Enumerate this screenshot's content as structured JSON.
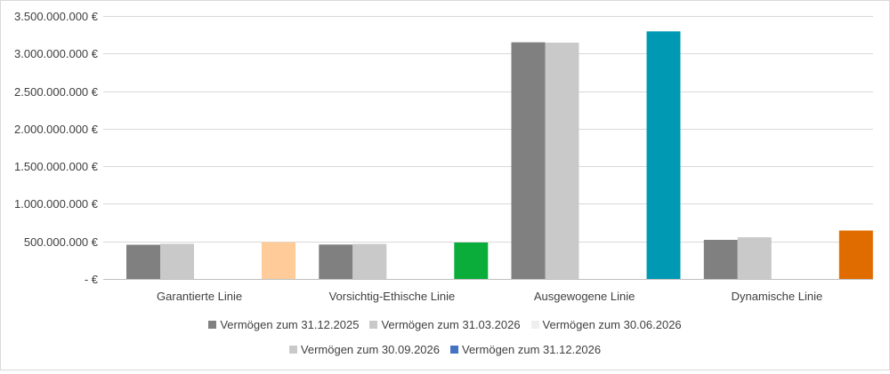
{
  "chart_data": {
    "type": "bar",
    "categories": [
      "Garantierte Linie",
      "Vorsichtig-Ethische Linie",
      "Ausgewogene Linie",
      "Dynamische Linie"
    ],
    "series": [
      {
        "name": "Vermögen zum 31.12.2025",
        "color": "#808080",
        "values": [
          455000000,
          458000000,
          3150000000,
          520000000
        ]
      },
      {
        "name": "Vermögen zum 31.03.2026",
        "color": "#c9c9c9",
        "values": [
          468000000,
          466000000,
          3145000000,
          555000000
        ]
      },
      {
        "name": "Vermögen zum 30.06.2026",
        "color": "#efefef",
        "values": [
          0,
          0,
          0,
          0
        ]
      },
      {
        "name": "Vermögen zum 30.09.2026",
        "color": "#c9c9c9",
        "values": [
          0,
          0,
          0,
          0
        ]
      },
      {
        "name": "Vermögen zum 31.12.2026",
        "color": "#4472c4",
        "values": [
          490000000,
          485000000,
          3295000000,
          645000000
        ],
        "point_colors": [
          "#ffcc99",
          "#0aad3a",
          "#0099b4",
          "#e06c00"
        ]
      }
    ],
    "y_ticks": [
      {
        "value": 0,
        "label": "-  €"
      },
      {
        "value": 500000000,
        "label": "500.000.000 €"
      },
      {
        "value": 1000000000,
        "label": "1.000.000.000 €"
      },
      {
        "value": 1500000000,
        "label": "1.500.000.000 €"
      },
      {
        "value": 2000000000,
        "label": "2.000.000.000 €"
      },
      {
        "value": 2500000000,
        "label": "2.500.000.000 €"
      },
      {
        "value": 3000000000,
        "label": "3.000.000.000 €"
      },
      {
        "value": 3500000000,
        "label": "3.500.000.000 €"
      }
    ],
    "ylim": [
      0,
      3500000000
    ],
    "grid": true,
    "legend_position": "bottom",
    "legend_rows": [
      [
        0,
        1,
        2
      ],
      [
        3,
        4
      ]
    ],
    "title": "",
    "xlabel": "",
    "ylabel": ""
  }
}
